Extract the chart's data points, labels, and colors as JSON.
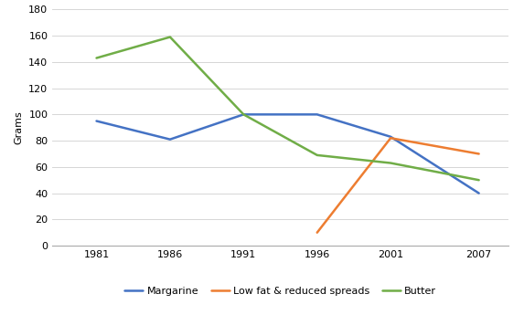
{
  "years": [
    1981,
    1986,
    1991,
    1996,
    2001,
    2007
  ],
  "margarine": [
    95,
    81,
    100,
    100,
    83,
    40
  ],
  "low_fat": [
    null,
    null,
    null,
    10,
    82,
    70
  ],
  "butter": [
    143,
    159,
    100,
    69,
    63,
    50
  ],
  "ylabel": "Grams",
  "ylim": [
    0,
    180
  ],
  "yticks": [
    0,
    20,
    40,
    60,
    80,
    100,
    120,
    140,
    160,
    180
  ],
  "legend_labels": [
    "Margarine",
    "Low fat & reduced spreads",
    "Butter"
  ],
  "colors": {
    "margarine": "#4472C4",
    "low_fat": "#ED7D31",
    "butter": "#70AD47"
  },
  "line_width": 1.8,
  "background_color": "#FFFFFF",
  "tick_fontsize": 8,
  "ylabel_fontsize": 8,
  "legend_fontsize": 8
}
